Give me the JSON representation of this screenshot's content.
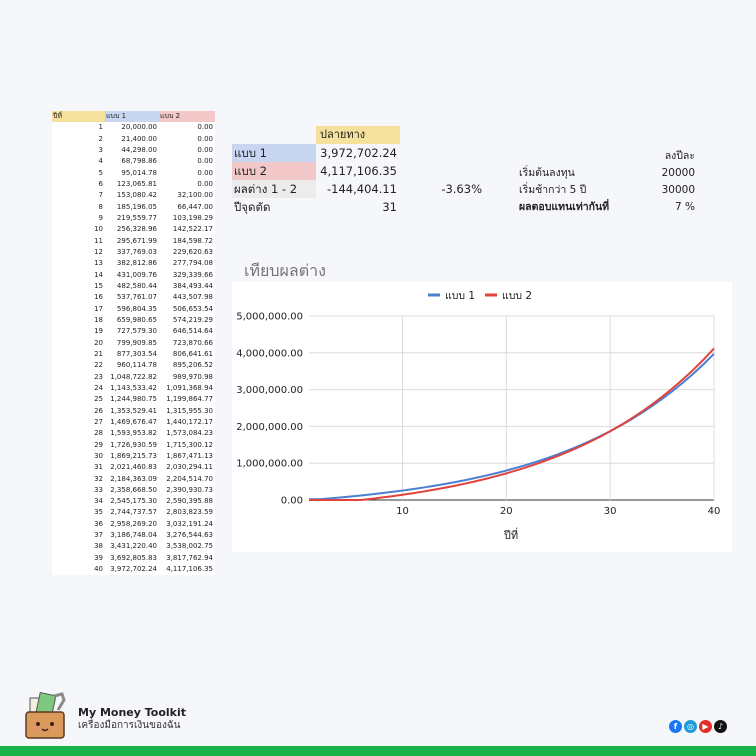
{
  "table": {
    "headers": [
      "ปีที่",
      "แบบ 1",
      "แบบ 2"
    ],
    "rows": [
      [
        "1",
        "20,000.00",
        "0.00"
      ],
      [
        "2",
        "21,400.00",
        "0.00"
      ],
      [
        "3",
        "44,298.00",
        "0.00"
      ],
      [
        "4",
        "68,798.86",
        "0.00"
      ],
      [
        "5",
        "95,014.78",
        "0.00"
      ],
      [
        "6",
        "123,065.81",
        "0.00"
      ],
      [
        "7",
        "153,080.42",
        "32,100.00"
      ],
      [
        "8",
        "185,196.05",
        "66,447.00"
      ],
      [
        "9",
        "219,559.77",
        "103,198.29"
      ],
      [
        "10",
        "256,328.96",
        "142,522.17"
      ],
      [
        "11",
        "295,671.99",
        "184,598.72"
      ],
      [
        "12",
        "337,769.03",
        "229,620.63"
      ],
      [
        "13",
        "382,812.86",
        "277,794.08"
      ],
      [
        "14",
        "431,009.76",
        "329,339.66"
      ],
      [
        "15",
        "482,580.44",
        "384,493.44"
      ],
      [
        "16",
        "537,761.07",
        "443,507.98"
      ],
      [
        "17",
        "596,804.35",
        "506,653.54"
      ],
      [
        "18",
        "659,980.65",
        "574,219.29"
      ],
      [
        "19",
        "727,579.30",
        "646,514.64"
      ],
      [
        "20",
        "799,909.85",
        "723,870.66"
      ],
      [
        "21",
        "877,303.54",
        "806,641.61"
      ],
      [
        "22",
        "960,114.78",
        "895,206.52"
      ],
      [
        "23",
        "1,048,722.82",
        "989,970.98"
      ],
      [
        "24",
        "1,143,533.42",
        "1,091,368.94"
      ],
      [
        "25",
        "1,244,980.75",
        "1,199,864.77"
      ],
      [
        "26",
        "1,353,529.41",
        "1,315,955.30"
      ],
      [
        "27",
        "1,469,676.47",
        "1,440,172.17"
      ],
      [
        "28",
        "1,593,953.82",
        "1,573,084.23"
      ],
      [
        "29",
        "1,726,930.59",
        "1,715,300.12"
      ],
      [
        "30",
        "1,869,215.73",
        "1,867,471.13"
      ],
      [
        "31",
        "2,021,460.83",
        "2,030,294.11"
      ],
      [
        "32",
        "2,184,363.09",
        "2,204,514.70"
      ],
      [
        "33",
        "2,358,668.50",
        "2,390,930.73"
      ],
      [
        "34",
        "2,545,175.30",
        "2,590,395.88"
      ],
      [
        "35",
        "2,744,737.57",
        "2,803,823.59"
      ],
      [
        "36",
        "2,958,269.20",
        "3,032,191.24"
      ],
      [
        "37",
        "3,186,748.04",
        "3,276,544.63"
      ],
      [
        "38",
        "3,431,220.40",
        "3,538,002.75"
      ],
      [
        "39",
        "3,692,805.83",
        "3,817,762.94"
      ],
      [
        "40",
        "3,972,702.24",
        "4,117,106.35"
      ]
    ]
  },
  "summary": {
    "destination_header": "ปลายทาง",
    "plan1_label": "แบบ 1",
    "plan1_value": "3,972,702.24",
    "plan2_label": "แบบ 2",
    "plan2_value": "4,117,106.35",
    "diff_label": "ผลต่าง 1 - 2",
    "diff_value": "-144,404.11",
    "diff_percent": "-3.63%",
    "cutoff_label": "ปีจุดตัด",
    "cutoff_value": "31"
  },
  "params": {
    "header": "ลงปีละ",
    "start_label": "เริ่มต้นลงทุน",
    "start_value": "20000",
    "late_label": "เริ่มช้ากว่า 5 ปี",
    "late_value": "30000",
    "return_label": "ผลตอบแทนเท่ากันที่",
    "return_value": "7 %"
  },
  "chart_data": {
    "type": "line",
    "title": "เทียบผลต่าง",
    "xlabel": "ปีที่",
    "ylabel": "",
    "x": [
      1,
      2,
      3,
      4,
      5,
      6,
      7,
      8,
      9,
      10,
      11,
      12,
      13,
      14,
      15,
      16,
      17,
      18,
      19,
      20,
      21,
      22,
      23,
      24,
      25,
      26,
      27,
      28,
      29,
      30,
      31,
      32,
      33,
      34,
      35,
      36,
      37,
      38,
      39,
      40
    ],
    "series": [
      {
        "name": "แบบ 1",
        "color": "#4a7fd4",
        "values": [
          20000,
          21400,
          44298,
          68798.86,
          95014.78,
          123065.81,
          153080.42,
          185196.05,
          219559.77,
          256328.96,
          295671.99,
          337769.03,
          382812.86,
          431009.76,
          482580.44,
          537761.07,
          596804.35,
          659980.65,
          727579.3,
          799909.85,
          877303.54,
          960114.78,
          1048722.82,
          1143533.42,
          1244980.75,
          1353529.41,
          1469676.47,
          1593953.82,
          1726930.59,
          1869215.73,
          2021460.83,
          2184363.09,
          2358668.5,
          2545175.3,
          2744737.57,
          2958269.2,
          3186748.04,
          3431220.4,
          3692805.83,
          3972702.24
        ]
      },
      {
        "name": "แบบ 2",
        "color": "#e0433b",
        "values": [
          0,
          0,
          0,
          0,
          0,
          0,
          32100,
          66447,
          103198.29,
          142522.17,
          184598.72,
          229620.63,
          277794.08,
          329339.66,
          384493.44,
          443507.98,
          506653.54,
          574219.29,
          646514.64,
          723870.66,
          806641.61,
          895206.52,
          989970.98,
          1091368.94,
          1199864.77,
          1315955.3,
          1440172.17,
          1573084.23,
          1715300.12,
          1867471.13,
          2030294.11,
          2204514.7,
          2390930.73,
          2590395.88,
          2803823.59,
          3032191.24,
          3276544.63,
          3538002.75,
          3817762.94,
          4117106.35
        ]
      }
    ],
    "xlim": [
      1,
      40
    ],
    "ylim": [
      0,
      5000000
    ],
    "x_ticks": [
      10,
      20,
      30,
      40
    ],
    "y_ticks": [
      0,
      1000000,
      2000000,
      3000000,
      4000000,
      5000000
    ],
    "y_tick_labels": [
      "0.00",
      "1,000,000.00",
      "2,000,000.00",
      "3,000,000.00",
      "4,000,000.00",
      "5,000,000.00"
    ],
    "grid": true,
    "legend": "top"
  },
  "footer": {
    "brand_name": "My Money Toolkit",
    "tagline": "เครื่องมือการเงินของฉัน",
    "social_icons": [
      "facebook-icon",
      "website-icon",
      "youtube-icon",
      "tiktok-icon"
    ],
    "accent_color": "#19b34a"
  }
}
